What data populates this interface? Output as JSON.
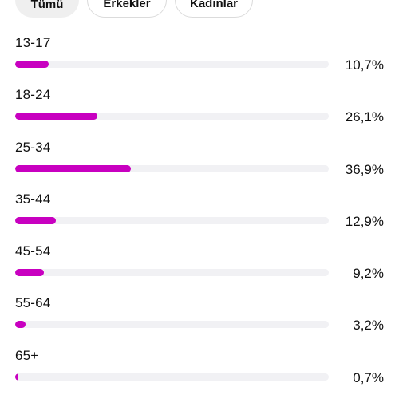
{
  "tabs": [
    {
      "label": "Tümü",
      "active": true
    },
    {
      "label": "Erkekler",
      "active": false
    },
    {
      "label": "Kadınlar",
      "active": false
    }
  ],
  "accent_color": "#c800c0",
  "age_groups": [
    {
      "label": "13-17",
      "percent_text": "10,7%",
      "value": 10.7
    },
    {
      "label": "18-24",
      "percent_text": "26,1%",
      "value": 26.1
    },
    {
      "label": "25-34",
      "percent_text": "36,9%",
      "value": 36.9
    },
    {
      "label": "35-44",
      "percent_text": "12,9%",
      "value": 12.9
    },
    {
      "label": "45-54",
      "percent_text": "9,2%",
      "value": 9.2
    },
    {
      "label": "55-64",
      "percent_text": "3,2%",
      "value": 3.2
    },
    {
      "label": "65+",
      "percent_text": "0,7%",
      "value": 0.7
    }
  ]
}
